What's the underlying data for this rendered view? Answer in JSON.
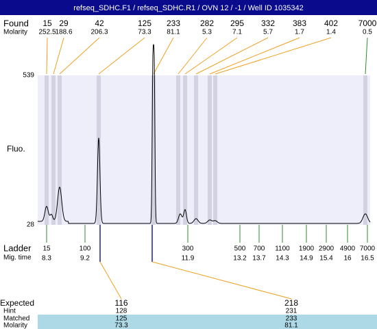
{
  "header": {
    "title": "refseq_SDHC.F1 / refseq_SDHC.R1 / OVN 12 / -1 / Well ID 1035342"
  },
  "found": {
    "label": "Found",
    "sublabel": "Molarity",
    "peaks": [
      {
        "size": 15,
        "molarity": 252.5
      },
      {
        "size": 29,
        "molarity": 188.6
      },
      {
        "size": 42,
        "molarity": 206.3
      },
      {
        "size": 125,
        "molarity": 73.3
      },
      {
        "size": 233,
        "molarity": 81.1
      },
      {
        "size": 282,
        "molarity": 5.3
      },
      {
        "size": 295,
        "molarity": 7.1
      },
      {
        "size": 332,
        "molarity": 5.7
      },
      {
        "size": 383,
        "molarity": 1.7
      },
      {
        "size": 402,
        "molarity": 1.4
      },
      {
        "size": 7000,
        "molarity": 0.5
      }
    ]
  },
  "yaxis": {
    "label": "Fluo.",
    "max": 539,
    "min": 28
  },
  "ladder": {
    "label": "Ladder",
    "sublabel": "Mig. time",
    "bands": [
      {
        "size": 15,
        "time": 8.3
      },
      {
        "size": 100,
        "time": 9.2
      },
      {
        "size": 300,
        "time": 11.9
      },
      {
        "size": 500,
        "time": 13.2
      },
      {
        "size": 700,
        "time": 13.7
      },
      {
        "size": 1100,
        "time": 14.3
      },
      {
        "size": 1900,
        "time": 14.9
      },
      {
        "size": 2900,
        "time": 15.4
      },
      {
        "size": 4900,
        "time": 16
      },
      {
        "size": 7000,
        "time": 16.5
      }
    ]
  },
  "expected": {
    "labels": [
      "Expected",
      "Hint",
      "Matched",
      "Molarity"
    ],
    "columns": [
      {
        "expected": 116,
        "hint": 128,
        "matched": 125,
        "molarity": 73.3
      },
      {
        "expected": 218,
        "hint": 231,
        "matched": 233,
        "molarity": 81.1
      }
    ]
  }
}
